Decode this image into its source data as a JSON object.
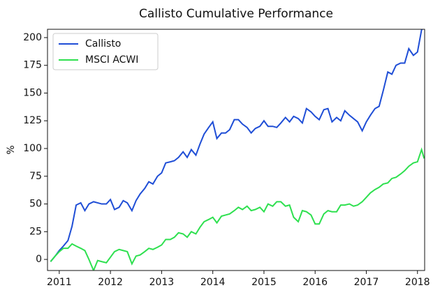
{
  "chart_data": {
    "type": "line",
    "title": "Callisto Cumulative Performance",
    "ylabel": "%",
    "x": [
      2010.83,
      2010.92,
      2011.0,
      2011.08,
      2011.17,
      2011.25,
      2011.33,
      2011.42,
      2011.5,
      2011.58,
      2011.67,
      2011.75,
      2011.83,
      2011.92,
      2012.0,
      2012.08,
      2012.17,
      2012.25,
      2012.33,
      2012.42,
      2012.5,
      2012.58,
      2012.67,
      2012.75,
      2012.83,
      2012.92,
      2013.0,
      2013.08,
      2013.17,
      2013.25,
      2013.33,
      2013.42,
      2013.5,
      2013.58,
      2013.67,
      2013.75,
      2013.83,
      2013.92,
      2014.0,
      2014.08,
      2014.17,
      2014.25,
      2014.33,
      2014.42,
      2014.5,
      2014.58,
      2014.67,
      2014.75,
      2014.83,
      2014.92,
      2015.0,
      2015.08,
      2015.17,
      2015.25,
      2015.33,
      2015.42,
      2015.5,
      2015.58,
      2015.67,
      2015.75,
      2015.83,
      2015.92,
      2016.0,
      2016.08,
      2016.17,
      2016.25,
      2016.33,
      2016.42,
      2016.5,
      2016.58,
      2016.67,
      2016.75,
      2016.83,
      2016.92,
      2017.0,
      2017.08,
      2017.17,
      2017.25,
      2017.33,
      2017.42,
      2017.5,
      2017.58,
      2017.67,
      2017.75,
      2017.83,
      2017.92,
      2018.0,
      2018.08,
      2018.13
    ],
    "series": [
      {
        "name": "Callisto",
        "color": "#1f4ed6",
        "values": [
          -2,
          3,
          8,
          12,
          17,
          30,
          49,
          51,
          44,
          50,
          52,
          51,
          50,
          50,
          54,
          45,
          47,
          53,
          51,
          44,
          53,
          59,
          64,
          70,
          68,
          75,
          78,
          87,
          88,
          89,
          92,
          97,
          92,
          99,
          94,
          104,
          113,
          119,
          124,
          109,
          114,
          114,
          117,
          126,
          126,
          122,
          119,
          114,
          118,
          120,
          125,
          120,
          120,
          119,
          123,
          128,
          124,
          129,
          127,
          123,
          136,
          133,
          129,
          126,
          135,
          136,
          124,
          128,
          125,
          134,
          130,
          127,
          124,
          116,
          124,
          130,
          136,
          138,
          152,
          169,
          167,
          175,
          177,
          177,
          190,
          184,
          187,
          207,
          209
        ]
      },
      {
        "name": "MSCI ACWI",
        "color": "#2ee04f",
        "values": [
          -2,
          3,
          7,
          10,
          10,
          14,
          12,
          10,
          8,
          0,
          -10,
          -1,
          -2,
          -3,
          2,
          7,
          9,
          8,
          7,
          -4,
          3,
          4,
          7,
          10,
          9,
          11,
          13,
          18,
          18,
          20,
          24,
          23,
          20,
          25,
          23,
          29,
          34,
          36,
          38,
          33,
          39,
          40,
          41,
          44,
          47,
          45,
          48,
          44,
          45,
          47,
          43,
          50,
          48,
          52,
          52,
          48,
          49,
          38,
          34,
          44,
          43,
          40,
          32,
          32,
          41,
          44,
          43,
          43,
          49,
          49,
          50,
          48,
          49,
          52,
          56,
          60,
          63,
          65,
          68,
          69,
          73,
          74,
          77,
          80,
          84,
          87,
          88,
          99,
          91
        ]
      }
    ],
    "xlim": [
      2010.77,
      2018.14
    ],
    "xticks": [
      2011,
      2012,
      2013,
      2014,
      2015,
      2016,
      2017,
      2018
    ],
    "ylim": [
      -10,
      207.5
    ],
    "yticks": [
      0,
      25,
      50,
      75,
      100,
      125,
      150,
      175,
      200
    ],
    "grid": false,
    "legend": "upper left"
  }
}
